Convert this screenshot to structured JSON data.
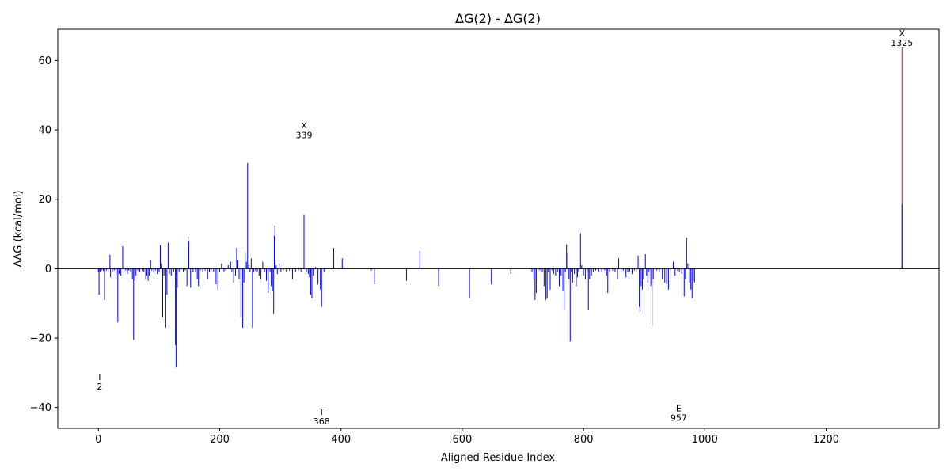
{
  "chart_data": {
    "type": "bar",
    "title": "ΔG(2) - ΔG(2)",
    "xlabel": "Aligned Residue Index",
    "ylabel": "ΔΔG (kcal/mol)",
    "xlim": [
      -67,
      1386
    ],
    "ylim": [
      -46,
      69
    ],
    "xticks": [
      0,
      200,
      400,
      600,
      800,
      1000,
      1200
    ],
    "yticks": [
      -40,
      -20,
      0,
      20,
      40,
      60
    ],
    "grid": false,
    "zero_line": true,
    "colors": {
      "bar": "#0000ff",
      "highlight": "#b22222",
      "axis": "#000000"
    },
    "series": [
      {
        "color": "#0000ff",
        "points": [
          [
            0,
            -1
          ],
          [
            1,
            -7.5
          ],
          [
            3,
            -1
          ],
          [
            5,
            -0.5
          ],
          [
            8,
            -0.6
          ],
          [
            10,
            -9
          ],
          [
            13,
            -0.5
          ],
          [
            16,
            -0.8
          ],
          [
            19,
            4
          ],
          [
            20,
            -2.5
          ],
          [
            23,
            -1
          ],
          [
            26,
            -0.5
          ],
          [
            29,
            -2
          ],
          [
            32,
            -15.5
          ],
          [
            34,
            -1.5
          ],
          [
            37,
            -2
          ],
          [
            40,
            6.5
          ],
          [
            42,
            -1
          ],
          [
            45,
            -0.5
          ],
          [
            48,
            -1.5
          ],
          [
            50,
            -0.5
          ],
          [
            53,
            -0.8
          ],
          [
            56,
            -3
          ],
          [
            58,
            -20.5
          ],
          [
            60,
            -3.5
          ],
          [
            62,
            -2
          ],
          [
            65,
            -0.5
          ],
          [
            68,
            -1
          ],
          [
            72,
            -0.5
          ],
          [
            75,
            -1
          ],
          [
            78,
            -3
          ],
          [
            80,
            -2
          ],
          [
            82,
            -3.5
          ],
          [
            84,
            -2
          ],
          [
            86,
            2.5
          ],
          [
            88,
            -0.5
          ],
          [
            91,
            -1
          ],
          [
            94,
            -0.5
          ],
          [
            97,
            -1.5
          ],
          [
            100,
            -1
          ],
          [
            102,
            6.8
          ],
          [
            103,
            1.5
          ],
          [
            106,
            -14
          ],
          [
            108,
            -2
          ],
          [
            111,
            -17
          ],
          [
            113,
            -7.5
          ],
          [
            115,
            7.5
          ],
          [
            117,
            -1.5
          ],
          [
            120,
            -2
          ],
          [
            124,
            -1
          ],
          [
            127,
            -22
          ],
          [
            128,
            -28.5
          ],
          [
            130,
            -5.5
          ],
          [
            133,
            -1
          ],
          [
            136,
            -0.5
          ],
          [
            140,
            -1
          ],
          [
            143,
            -0.5
          ],
          [
            146,
            -5
          ],
          [
            148,
            9.3
          ],
          [
            149,
            8
          ],
          [
            152,
            -5.5
          ],
          [
            156,
            -1
          ],
          [
            160,
            -0.8
          ],
          [
            163,
            -3
          ],
          [
            165,
            -5
          ],
          [
            168,
            -0.5
          ],
          [
            172,
            -1
          ],
          [
            176,
            -0.5
          ],
          [
            180,
            -3
          ],
          [
            183,
            -1
          ],
          [
            186,
            -0.5
          ],
          [
            190,
            -0.8
          ],
          [
            194,
            -4.5
          ],
          [
            197,
            -6
          ],
          [
            200,
            -1
          ],
          [
            203,
            1.5
          ],
          [
            207,
            -1
          ],
          [
            210,
            -0.5
          ],
          [
            214,
            1
          ],
          [
            218,
            2
          ],
          [
            220,
            -1
          ],
          [
            223,
            -4
          ],
          [
            226,
            -2
          ],
          [
            228,
            6
          ],
          [
            230,
            2.5
          ],
          [
            232,
            -3
          ],
          [
            235,
            -14
          ],
          [
            238,
            -17
          ],
          [
            240,
            -4
          ],
          [
            242,
            4.5
          ],
          [
            244,
            2
          ],
          [
            246,
            30.5
          ],
          [
            248,
            1
          ],
          [
            250,
            -1
          ],
          [
            252,
            3
          ],
          [
            254,
            -17
          ],
          [
            256,
            -1
          ],
          [
            259,
            -0.5
          ],
          [
            262,
            -1
          ],
          [
            265,
            -2
          ],
          [
            268,
            -3
          ],
          [
            271,
            2
          ],
          [
            274,
            -1
          ],
          [
            277,
            -3.5
          ],
          [
            280,
            -7
          ],
          [
            283,
            -1
          ],
          [
            285,
            -5
          ],
          [
            287,
            -6.5
          ],
          [
            289,
            -13
          ],
          [
            290,
            9.5
          ],
          [
            291,
            12.5
          ],
          [
            293,
            1
          ],
          [
            295,
            -1.5
          ],
          [
            298,
            1.5
          ],
          [
            301,
            -1
          ],
          [
            305,
            -0.5
          ],
          [
            310,
            -1
          ],
          [
            315,
            -0.5
          ],
          [
            320,
            -3
          ],
          [
            325,
            -1
          ],
          [
            330,
            -0.5
          ],
          [
            334,
            -1
          ],
          [
            339,
            15.5
          ],
          [
            343,
            -1
          ],
          [
            346,
            -1.5
          ],
          [
            348,
            -2.5
          ],
          [
            350,
            -7.5
          ],
          [
            352,
            -8.5
          ],
          [
            355,
            -2
          ],
          [
            358,
            0.5
          ],
          [
            362,
            -4.5
          ],
          [
            366,
            -6
          ],
          [
            368,
            -11
          ],
          [
            372,
            -1
          ],
          [
            388,
            6
          ],
          [
            402,
            3
          ],
          [
            450,
            -0.5
          ],
          [
            455,
            -4.5
          ],
          [
            508,
            -3.5
          ],
          [
            530,
            5.2
          ],
          [
            561,
            -5
          ],
          [
            612,
            -8.5
          ],
          [
            648,
            -4.5
          ],
          [
            680,
            -1.5
          ],
          [
            715,
            -1
          ],
          [
            718,
            -3
          ],
          [
            720,
            -9
          ],
          [
            722,
            -7
          ],
          [
            725,
            -1
          ],
          [
            728,
            -0.5
          ],
          [
            732,
            -1
          ],
          [
            735,
            -5
          ],
          [
            738,
            -9
          ],
          [
            740,
            -8.5
          ],
          [
            742,
            -1
          ],
          [
            745,
            -6
          ],
          [
            748,
            -0.5
          ],
          [
            751,
            -1.5
          ],
          [
            754,
            -2
          ],
          [
            757,
            -1
          ],
          [
            760,
            -5
          ],
          [
            763,
            -2
          ],
          [
            766,
            -6.5
          ],
          [
            768,
            -12
          ],
          [
            770,
            -1
          ],
          [
            772,
            7
          ],
          [
            774,
            4.5
          ],
          [
            776,
            -3
          ],
          [
            778,
            -21
          ],
          [
            780,
            -1
          ],
          [
            782,
            -4
          ],
          [
            785,
            -1.5
          ],
          [
            788,
            -5
          ],
          [
            790,
            -2.5
          ],
          [
            792,
            -1
          ],
          [
            795,
            10.2
          ],
          [
            797,
            1
          ],
          [
            800,
            -2
          ],
          [
            803,
            -3
          ],
          [
            806,
            -1
          ],
          [
            808,
            -12
          ],
          [
            810,
            -3
          ],
          [
            813,
            -2
          ],
          [
            816,
            -1
          ],
          [
            820,
            -0.5
          ],
          [
            825,
            -0.8
          ],
          [
            830,
            -1
          ],
          [
            835,
            -0.5
          ],
          [
            838,
            -2
          ],
          [
            840,
            -7
          ],
          [
            843,
            -1
          ],
          [
            848,
            -0.5
          ],
          [
            852,
            -1
          ],
          [
            856,
            -3
          ],
          [
            858,
            3
          ],
          [
            862,
            -1
          ],
          [
            866,
            -0.5
          ],
          [
            870,
            -2.5
          ],
          [
            873,
            -1
          ],
          [
            876,
            -0.8
          ],
          [
            880,
            -1.5
          ],
          [
            884,
            -0.5
          ],
          [
            887,
            -1
          ],
          [
            890,
            3.8
          ],
          [
            892,
            -11
          ],
          [
            893,
            -12.5
          ],
          [
            895,
            -5
          ],
          [
            897,
            -6
          ],
          [
            899,
            -3
          ],
          [
            902,
            4.2
          ],
          [
            904,
            -2
          ],
          [
            906,
            -4
          ],
          [
            908,
            -1
          ],
          [
            911,
            -5
          ],
          [
            913,
            -16.5
          ],
          [
            915,
            -3
          ],
          [
            918,
            -1
          ],
          [
            921,
            -0.5
          ],
          [
            925,
            -1
          ],
          [
            930,
            -3
          ],
          [
            934,
            -4
          ],
          [
            937,
            -4.5
          ],
          [
            940,
            -6
          ],
          [
            944,
            -1
          ],
          [
            948,
            2
          ],
          [
            951,
            -2
          ],
          [
            955,
            -0.5
          ],
          [
            958,
            -1
          ],
          [
            962,
            -1.5
          ],
          [
            966,
            -8
          ],
          [
            968,
            -3
          ],
          [
            970,
            9
          ],
          [
            972,
            1.5
          ],
          [
            975,
            -4
          ],
          [
            977,
            -6
          ],
          [
            979,
            -8.5
          ],
          [
            981,
            -3.5
          ],
          [
            983,
            -4
          ]
        ]
      },
      {
        "color": "#b22222",
        "points": [
          [
            1325,
            64
          ]
        ]
      },
      {
        "color": "#0000ff",
        "points": [
          [
            1325,
            18.5
          ]
        ]
      }
    ],
    "annotations": [
      {
        "residue": "I",
        "index": "2",
        "x": 2,
        "y": -33
      },
      {
        "residue": "X",
        "index": "339",
        "x": 339,
        "y": 39.5
      },
      {
        "residue": "T",
        "index": "368",
        "x": 368,
        "y": -43
      },
      {
        "residue": "E",
        "index": "957",
        "x": 957,
        "y": -42
      },
      {
        "residue": "X",
        "index": "1325",
        "x": 1325,
        "y": 66
      }
    ]
  }
}
